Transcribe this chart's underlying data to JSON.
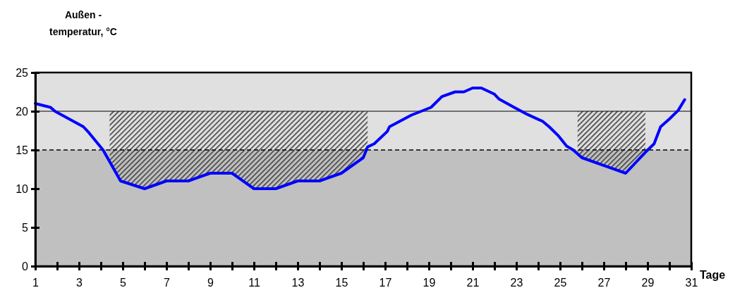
{
  "chart_data": {
    "type": "line",
    "xlabel": "Tage",
    "ylabel": "Außen - temperatur, °C",
    "xlim": [
      1,
      31
    ],
    "ylim": [
      0,
      25
    ],
    "xticks": [
      1,
      {
        "value": 2,
        "label": null
      },
      3,
      {
        "value": 4,
        "label": null
      },
      5,
      {
        "value": 6,
        "label": null
      },
      7,
      {
        "value": 8,
        "label": null
      },
      9,
      {
        "value": 10,
        "label": null
      },
      11,
      {
        "value": 12,
        "label": null
      },
      13,
      {
        "value": 14,
        "label": null
      },
      15,
      {
        "value": 16,
        "label": null
      },
      17,
      {
        "value": 18,
        "label": null
      },
      19,
      {
        "value": 20,
        "label": null
      },
      21,
      {
        "value": 22,
        "label": null
      },
      23,
      {
        "value": 24,
        "label": null
      },
      25,
      {
        "value": 26,
        "label": null
      },
      27,
      {
        "value": 28,
        "label": null
      },
      29,
      {
        "value": 30,
        "label": null
      },
      31
    ],
    "yticks": [
      0,
      5,
      10,
      15,
      20,
      25
    ],
    "bands": [
      {
        "axis": "y",
        "from": 15,
        "to": 25,
        "color": "#e0e0e0"
      },
      {
        "axis": "y",
        "from": 0,
        "to": 15,
        "color": "#c0c0c0"
      },
      {
        "axis": "x",
        "from": 4.4,
        "to": 16.2,
        "color": "#404040"
      },
      {
        "axis": "x",
        "from": 25.8,
        "to": 28.9,
        "color": "#404040"
      }
    ],
    "ref_lines": [
      {
        "axis": "y",
        "value": 20,
        "color": "#000000",
        "line_style": "solid"
      },
      {
        "axis": "y",
        "value": 15,
        "color": "#000000",
        "line_style": "dashed"
      }
    ],
    "series": [
      {
        "color": "#0000ff",
        "x": [
          1,
          1.7,
          1.9,
          3.2,
          3.4,
          4.1,
          4.9,
          6,
          7,
          8,
          9,
          10,
          11,
          12,
          13,
          14,
          15,
          16,
          16.2,
          16.5,
          17.1,
          17.2,
          18.2,
          19.1,
          19.6,
          20.2,
          20.6,
          21,
          21.4,
          22,
          22.2,
          22.9,
          23.5,
          24.2,
          24.5,
          24.9,
          25.3,
          25.6,
          26,
          27.1,
          28,
          28.9,
          29.3,
          29.6,
          30,
          30.4,
          30.7
        ],
        "values": [
          21,
          20.5,
          20,
          18,
          17.4,
          15,
          11,
          10,
          11,
          11,
          12,
          12,
          10,
          10,
          11,
          11,
          12,
          14,
          15.4,
          15.8,
          17.4,
          18,
          19.5,
          20.5,
          21.9,
          22.5,
          22.5,
          23,
          23,
          22.2,
          21.6,
          20.5,
          19.6,
          18.7,
          18,
          16.9,
          15.5,
          15,
          14,
          12.9,
          12,
          14.7,
          15.8,
          18,
          19,
          20.1,
          21.5
        ]
      }
    ]
  }
}
